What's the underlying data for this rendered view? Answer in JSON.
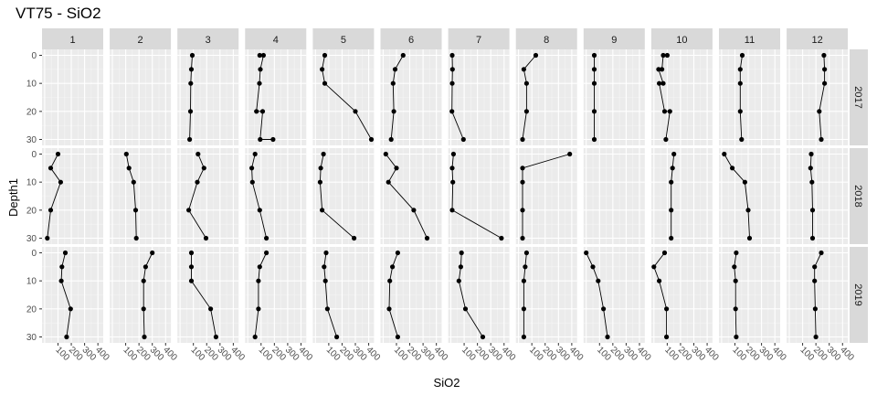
{
  "chart_data": {
    "type": "line",
    "title": "VT75  -  SiO2",
    "xlabel": "SiO2",
    "ylabel": "Depth1",
    "x_ticks": [
      100,
      200,
      300,
      400
    ],
    "y_ticks": [
      0,
      10,
      20,
      30
    ],
    "xlim": [
      -20,
      440
    ],
    "ylim": [
      0,
      30
    ],
    "y_reversed": true,
    "col_facets": [
      "1",
      "2",
      "3",
      "4",
      "5",
      "6",
      "7",
      "8",
      "9",
      "10",
      "11",
      "12"
    ],
    "row_facets": [
      "2017",
      "2018",
      "2019"
    ],
    "panels": [
      {
        "row": "2017",
        "col": "2",
        "points": []
      },
      {
        "row": "2017",
        "col": "3",
        "points": [
          [
            92,
            0
          ],
          [
            85,
            5
          ],
          [
            80,
            10
          ],
          [
            78,
            20
          ],
          [
            72,
            30
          ]
        ]
      },
      {
        "row": "2017",
        "col": "4",
        "points": [
          [
            90,
            0
          ],
          [
            118,
            0
          ],
          [
            95,
            5
          ],
          [
            88,
            10
          ],
          [
            65,
            20
          ],
          [
            112,
            20
          ],
          [
            93,
            30
          ],
          [
            190,
            30
          ]
        ]
      },
      {
        "row": "2017",
        "col": "5",
        "points": [
          [
            70,
            0
          ],
          [
            50,
            5
          ],
          [
            70,
            10
          ],
          [
            300,
            20
          ],
          [
            420,
            30
          ]
        ]
      },
      {
        "row": "2017",
        "col": "6",
        "points": [
          [
            150,
            0
          ],
          [
            90,
            5
          ],
          [
            75,
            10
          ],
          [
            80,
            20
          ],
          [
            60,
            30
          ]
        ]
      },
      {
        "row": "2017",
        "col": "7",
        "points": [
          [
            10,
            0
          ],
          [
            12,
            5
          ],
          [
            10,
            10
          ],
          [
            8,
            20
          ],
          [
            95,
            30
          ]
        ]
      },
      {
        "row": "2017",
        "col": "8",
        "points": [
          [
            130,
            0
          ],
          [
            40,
            5
          ],
          [
            60,
            10
          ],
          [
            60,
            20
          ],
          [
            30,
            30
          ]
        ]
      },
      {
        "row": "2017",
        "col": "9",
        "points": [
          [
            60,
            0
          ],
          [
            60,
            5
          ],
          [
            60,
            10
          ],
          [
            60,
            20
          ],
          [
            60,
            30
          ]
        ]
      },
      {
        "row": "2017",
        "col": "10",
        "points": [
          [
            100,
            0
          ],
          [
            70,
            0
          ],
          [
            60,
            5
          ],
          [
            35,
            5
          ],
          [
            70,
            10
          ],
          [
            40,
            10
          ],
          [
            80,
            20
          ],
          [
            120,
            20
          ],
          [
            90,
            30
          ]
        ]
      },
      {
        "row": "2017",
        "col": "11",
        "points": [
          [
            155,
            0
          ],
          [
            140,
            5
          ],
          [
            140,
            10
          ],
          [
            140,
            20
          ],
          [
            150,
            30
          ]
        ]
      },
      {
        "row": "2017",
        "col": "12",
        "points": [
          [
            260,
            0
          ],
          [
            265,
            5
          ],
          [
            265,
            10
          ],
          [
            225,
            20
          ],
          [
            240,
            30
          ]
        ]
      },
      {
        "row": "2018",
        "col": "1",
        "points": [
          [
            100,
            0
          ],
          [
            45,
            5
          ],
          [
            120,
            10
          ],
          [
            45,
            20
          ],
          [
            20,
            30
          ]
        ]
      },
      {
        "row": "2018",
        "col": "2",
        "points": [
          [
            105,
            0
          ],
          [
            125,
            5
          ],
          [
            160,
            10
          ],
          [
            175,
            20
          ],
          [
            180,
            30
          ]
        ]
      },
      {
        "row": "2018",
        "col": "3",
        "points": [
          [
            135,
            0
          ],
          [
            180,
            5
          ],
          [
            130,
            10
          ],
          [
            65,
            20
          ],
          [
            195,
            30
          ]
        ]
      },
      {
        "row": "2018",
        "col": "4",
        "points": [
          [
            55,
            0
          ],
          [
            30,
            5
          ],
          [
            35,
            10
          ],
          [
            90,
            20
          ],
          [
            140,
            30
          ]
        ]
      },
      {
        "row": "2018",
        "col": "5",
        "points": [
          [
            60,
            0
          ],
          [
            40,
            5
          ],
          [
            35,
            10
          ],
          [
            50,
            20
          ],
          [
            290,
            30
          ]
        ]
      },
      {
        "row": "2018",
        "col": "6",
        "points": [
          [
            20,
            0
          ],
          [
            100,
            5
          ],
          [
            40,
            10
          ],
          [
            230,
            20
          ],
          [
            330,
            30
          ]
        ]
      },
      {
        "row": "2018",
        "col": "7",
        "points": [
          [
            20,
            0
          ],
          [
            10,
            5
          ],
          [
            15,
            10
          ],
          [
            10,
            20
          ],
          [
            380,
            30
          ]
        ]
      },
      {
        "row": "2018",
        "col": "8",
        "points": [
          [
            385,
            0
          ],
          [
            30,
            5
          ],
          [
            30,
            10
          ],
          [
            30,
            20
          ],
          [
            30,
            30
          ]
        ]
      },
      {
        "row": "2018",
        "col": "9",
        "points": []
      },
      {
        "row": "2018",
        "col": "10",
        "points": [
          [
            150,
            0
          ],
          [
            140,
            5
          ],
          [
            130,
            10
          ],
          [
            130,
            20
          ],
          [
            130,
            30
          ]
        ]
      },
      {
        "row": "2018",
        "col": "11",
        "points": [
          [
            20,
            0
          ],
          [
            80,
            5
          ],
          [
            175,
            10
          ],
          [
            200,
            20
          ],
          [
            210,
            30
          ]
        ]
      },
      {
        "row": "2018",
        "col": "12",
        "points": [
          [
            165,
            0
          ],
          [
            160,
            5
          ],
          [
            170,
            10
          ],
          [
            175,
            20
          ],
          [
            175,
            30
          ]
        ]
      },
      {
        "row": "2019",
        "col": "1",
        "points": [
          [
            155,
            0
          ],
          [
            130,
            5
          ],
          [
            125,
            10
          ],
          [
            195,
            20
          ],
          [
            165,
            30
          ]
        ]
      },
      {
        "row": "2019",
        "col": "2",
        "points": [
          [
            300,
            0
          ],
          [
            250,
            5
          ],
          [
            235,
            10
          ],
          [
            235,
            20
          ],
          [
            240,
            30
          ]
        ]
      },
      {
        "row": "2019",
        "col": "3",
        "points": [
          [
            85,
            0
          ],
          [
            85,
            5
          ],
          [
            85,
            10
          ],
          [
            230,
            20
          ],
          [
            270,
            30
          ]
        ]
      },
      {
        "row": "2019",
        "col": "4",
        "points": [
          [
            140,
            0
          ],
          [
            90,
            5
          ],
          [
            80,
            10
          ],
          [
            80,
            20
          ],
          [
            55,
            30
          ]
        ]
      },
      {
        "row": "2019",
        "col": "5",
        "points": [
          [
            80,
            0
          ],
          [
            65,
            5
          ],
          [
            75,
            10
          ],
          [
            90,
            20
          ],
          [
            160,
            30
          ]
        ]
      },
      {
        "row": "2019",
        "col": "6",
        "points": [
          [
            110,
            0
          ],
          [
            70,
            5
          ],
          [
            50,
            10
          ],
          [
            45,
            20
          ],
          [
            110,
            30
          ]
        ]
      },
      {
        "row": "2019",
        "col": "7",
        "points": [
          [
            80,
            0
          ],
          [
            75,
            5
          ],
          [
            60,
            10
          ],
          [
            110,
            20
          ],
          [
            240,
            30
          ]
        ]
      },
      {
        "row": "2019",
        "col": "8",
        "points": [
          [
            60,
            0
          ],
          [
            50,
            5
          ],
          [
            40,
            10
          ],
          [
            40,
            20
          ],
          [
            40,
            30
          ]
        ]
      },
      {
        "row": "2019",
        "col": "9",
        "points": [
          [
            0,
            0
          ],
          [
            50,
            5
          ],
          [
            90,
            10
          ],
          [
            130,
            20
          ],
          [
            160,
            30
          ]
        ]
      },
      {
        "row": "2019",
        "col": "10",
        "points": [
          [
            80,
            0
          ],
          [
            0,
            5
          ],
          [
            40,
            10
          ],
          [
            95,
            20
          ],
          [
            95,
            30
          ]
        ]
      },
      {
        "row": "2019",
        "col": "11",
        "points": [
          [
            110,
            0
          ],
          [
            95,
            5
          ],
          [
            105,
            10
          ],
          [
            105,
            20
          ],
          [
            110,
            30
          ]
        ]
      },
      {
        "row": "2019",
        "col": "12",
        "points": [
          [
            240,
            0
          ],
          [
            190,
            5
          ],
          [
            190,
            10
          ],
          [
            195,
            20
          ],
          [
            200,
            30
          ]
        ]
      }
    ]
  }
}
